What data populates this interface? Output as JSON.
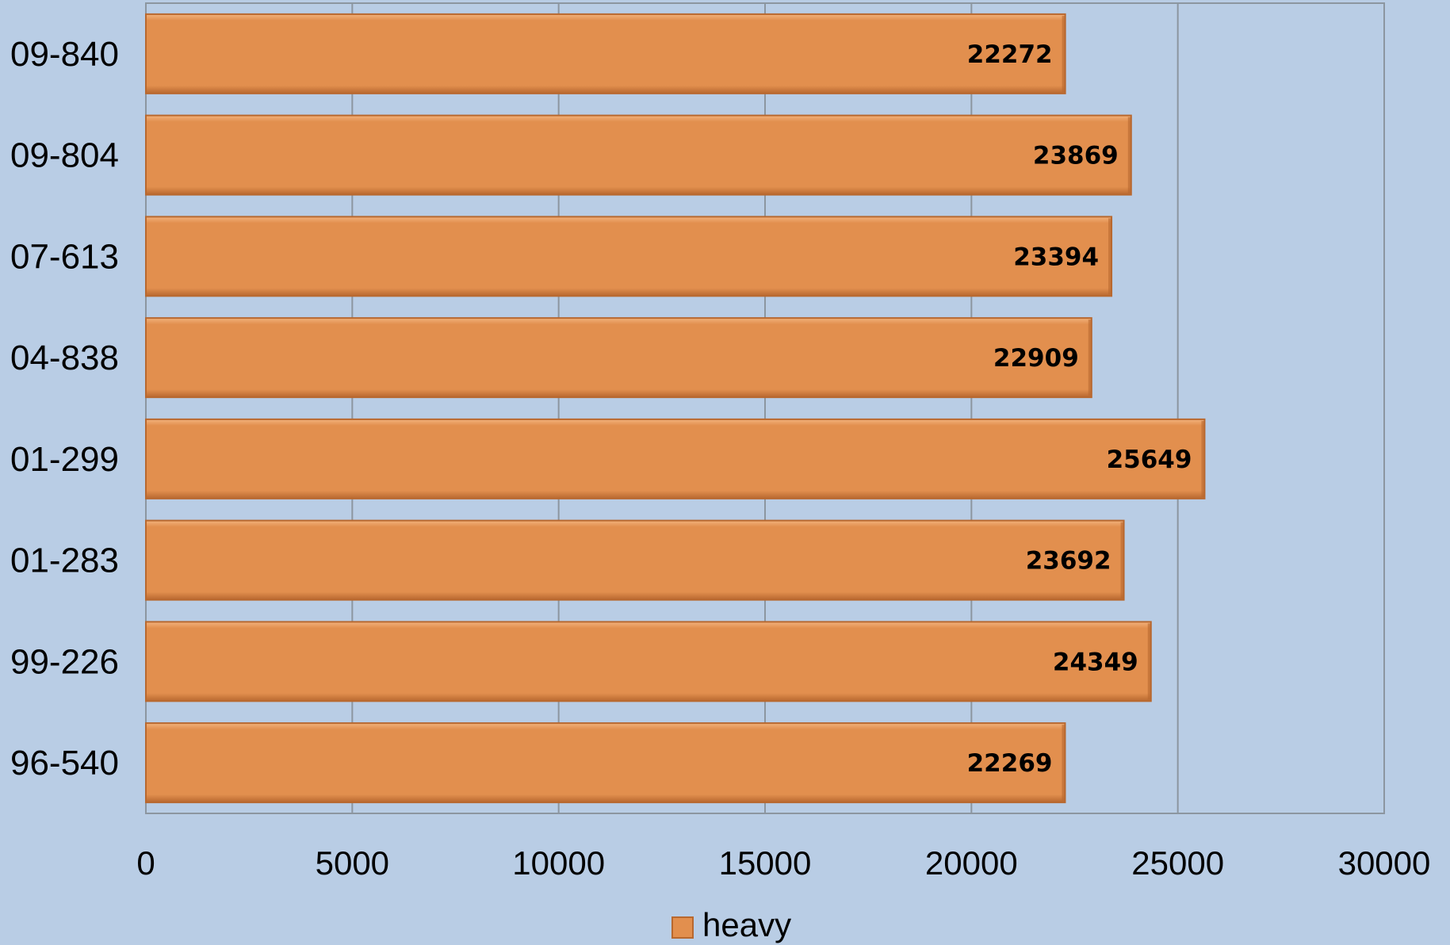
{
  "chart_data": {
    "type": "bar",
    "orientation": "horizontal",
    "categories": [
      "09-840",
      "09-804",
      "07-613",
      "04-838",
      "01-299",
      "01-283",
      "99-226",
      "96-540"
    ],
    "series": [
      {
        "name": "heavy",
        "values": [
          22272,
          23869,
          23394,
          22909,
          25649,
          23692,
          24349,
          22269
        ],
        "data_labels": [
          "22272",
          "23869",
          "23394",
          "22909",
          "25649",
          "23692",
          "24349",
          "22269"
        ]
      }
    ],
    "xlim": [
      0,
      30000
    ],
    "x_ticks": [
      0,
      5000,
      10000,
      15000,
      20000,
      25000,
      30000
    ],
    "x_tick_labels": [
      "0",
      "5000",
      "10000",
      "15000",
      "20000",
      "25000",
      "30000"
    ],
    "title": "",
    "xlabel": "",
    "ylabel": "",
    "grid": true,
    "legend_position": "bottom",
    "colors": {
      "background": "#b9cde5",
      "bar_fill": "#e28f4e",
      "bar_highlight": "#f2b27c",
      "bar_shadow": "#b8682f",
      "gridline": "#8c96a0",
      "axis": "#8c96a0"
    }
  }
}
